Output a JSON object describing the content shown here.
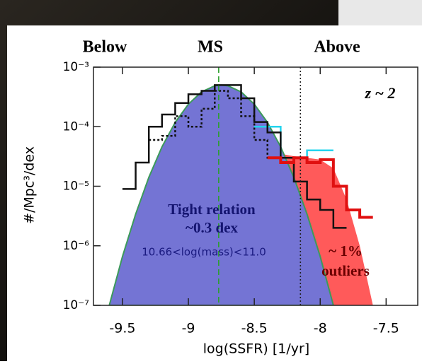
{
  "chart_data": {
    "type": "line",
    "headers": [
      "Below",
      "MS",
      "Above"
    ],
    "annotation_redshift": "z ~ 2",
    "annotation_ms_1": "Tight relation",
    "annotation_ms_2": "~0.3 dex",
    "annotation_mass": "10.66<log(mass)<11.0",
    "annotation_out_1": "~ 1%",
    "annotation_out_2": "outliers",
    "xlabel": "log(SSFR) [1/yr]",
    "ylabel": "#/Mpc³/dex",
    "log_y": true,
    "xlim": [
      -9.72,
      -7.26
    ],
    "ylim": [
      1e-07,
      0.001
    ],
    "xticks": [
      -9.5,
      -9.0,
      -8.5,
      -8.0,
      -7.5
    ],
    "yticks": [
      {
        "value": 1e-07,
        "label": "10⁻⁷"
      },
      {
        "value": 1e-06,
        "label": "10⁻⁶"
      },
      {
        "value": 1e-05,
        "label": "10⁻⁵"
      },
      {
        "value": 0.0001,
        "label": "10⁻⁴"
      },
      {
        "value": 0.001,
        "label": "10⁻³"
      }
    ],
    "vlines": [
      {
        "x": -8.77,
        "color": "#2ca02c",
        "dash": "8,5"
      },
      {
        "x": -8.15,
        "color": "#222222",
        "dash": "2,3"
      }
    ],
    "series": [
      {
        "style": "area",
        "color": "#ff5a5a",
        "x": [
          -8.4,
          -8.3,
          -8.2,
          -8.1,
          -8.0,
          -7.9,
          -7.8,
          -7.7,
          -7.6
        ],
        "values": [
          3.5e-05,
          3.5e-05,
          3.2e-05,
          3e-05,
          2.8e-05,
          2e-05,
          6e-06,
          1e-06,
          1e-07
        ]
      },
      {
        "style": "area",
        "color": "#7474d4",
        "edge": "#3c9a5a",
        "x": [
          -9.6,
          -9.5,
          -9.4,
          -9.3,
          -9.2,
          -9.1,
          -9.0,
          -8.9,
          -8.8,
          -8.75,
          -8.7,
          -8.6,
          -8.5,
          -8.4,
          -8.3,
          -8.2,
          -8.1,
          -8.0,
          -7.9
        ],
        "values": [
          1e-07,
          6.6e-07,
          3.4e-06,
          1.41e-05,
          4.6e-05,
          0.000118,
          0.000239,
          0.000384,
          0.000486,
          0.0005,
          0.000486,
          0.000384,
          0.000239,
          0.000118,
          4.6e-05,
          1.41e-05,
          3.4e-06,
          6.6e-07,
          1e-07
        ]
      },
      {
        "style": "step",
        "color": "#22d4ee",
        "x": [
          -8.45,
          -8.35,
          -8.25,
          -8.15,
          -8.05,
          -7.95
        ],
        "values": [
          0.0001,
          0.0001,
          3e-05,
          3e-05,
          4e-05,
          4e-05
        ]
      },
      {
        "style": "step",
        "color": "#111111",
        "x": [
          -9.45,
          -9.35,
          -9.25,
          -9.15,
          -9.05,
          -8.95,
          -8.85,
          -8.75,
          -8.65,
          -8.55,
          -8.45,
          -8.35,
          -8.25,
          -8.15,
          -8.05,
          -7.95,
          -7.85
        ],
        "values": [
          9e-06,
          2.5e-05,
          0.0001,
          0.00016,
          0.00025,
          0.00035,
          0.0004,
          0.0005,
          0.0005,
          0.0003,
          0.00012,
          8e-05,
          3e-05,
          1.2e-05,
          6e-06,
          4e-06,
          2e-06
        ]
      },
      {
        "style": "step-dotted",
        "color": "#111111",
        "x": [
          -9.25,
          -9.15,
          -9.05,
          -8.95,
          -8.85,
          -8.75,
          -8.65,
          -8.55,
          -8.45,
          -8.35
        ],
        "values": [
          6e-05,
          7e-05,
          0.00015,
          0.0001,
          0.0002,
          0.0004,
          0.0003,
          0.00015,
          6e-05,
          3e-05
        ]
      },
      {
        "style": "step",
        "color": "#e01010",
        "x": [
          -8.35,
          -8.25,
          -8.15,
          -8.05,
          -7.95,
          -7.85,
          -7.75,
          -7.65
        ],
        "values": [
          3e-05,
          2.5e-05,
          3e-05,
          2.5e-05,
          2.8e-05,
          1e-05,
          4e-06,
          3e-06
        ]
      }
    ]
  }
}
